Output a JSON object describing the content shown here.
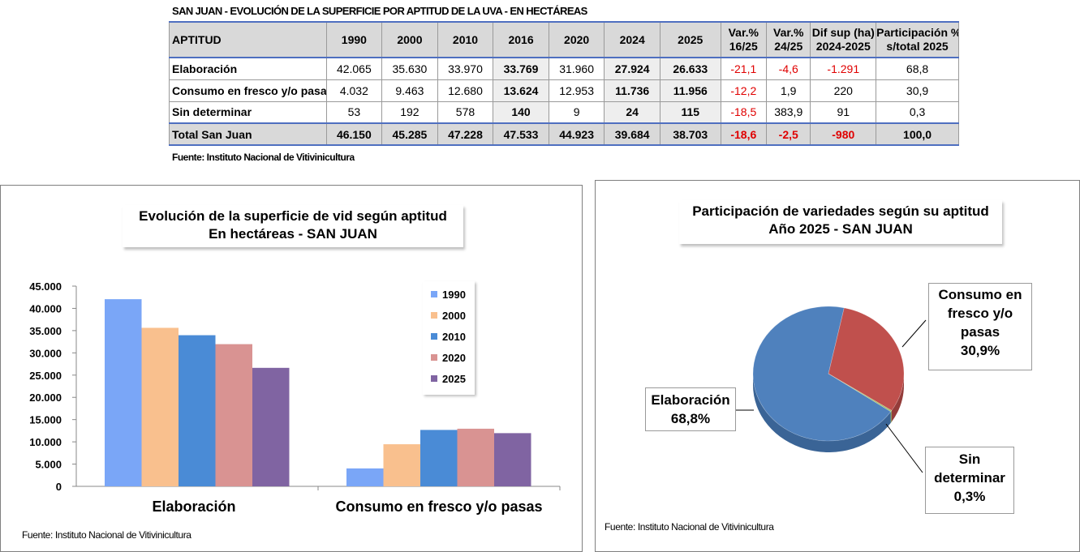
{
  "table": {
    "title": "SAN JUAN - EVOLUCIÓN DE LA SUPERFICIE POR APTITUD DE LA UVA - EN HECTÁREAS",
    "headers": {
      "aptitud": "APTITUD",
      "y1990": "1990",
      "y2000": "2000",
      "y2010": "2010",
      "y2016": "2016",
      "y2020": "2020",
      "y2024": "2024",
      "y2025": "2025",
      "var1625_a": "Var.%",
      "var1625_b": "16/25",
      "var2425_a": "Var.%",
      "var2425_b": "24/25",
      "dif_a": "Dif sup (ha)",
      "dif_b": "2024-2025",
      "part_a": "Participación %",
      "part_b": "s/total 2025"
    },
    "rows": [
      {
        "label": "Elaboración",
        "v1990": "42.065",
        "v2000": "35.630",
        "v2010": "33.970",
        "v2016": "33.769",
        "v2020": "31.960",
        "v2024": "27.924",
        "v2025": "26.633",
        "var1625": "-21,1",
        "var2425": "-4,6",
        "dif": "-1.291",
        "part": "68,8"
      },
      {
        "label": "Consumo en fresco y/o pasas",
        "v1990": "4.032",
        "v2000": "9.463",
        "v2010": "12.680",
        "v2016": "13.624",
        "v2020": "12.953",
        "v2024": "11.736",
        "v2025": "11.956",
        "var1625": "-12,2",
        "var2425": "1,9",
        "dif": "220",
        "part": "30,9"
      },
      {
        "label": "Sin determinar",
        "v1990": "53",
        "v2000": "192",
        "v2010": "578",
        "v2016": "140",
        "v2020": "9",
        "v2024": "24",
        "v2025": "115",
        "var1625": "-18,5",
        "var2425": "383,9",
        "dif": "91",
        "part": "0,3"
      }
    ],
    "total": {
      "label": "Total San Juan",
      "v1990": "46.150",
      "v2000": "45.285",
      "v2010": "47.228",
      "v2016": "47.533",
      "v2020": "44.923",
      "v2024": "39.684",
      "v2025": "38.703",
      "var1625": "-18,6",
      "var2425": "-2,5",
      "dif": "-980",
      "part": "100,0"
    },
    "source": "Fuente: Instituto Nacional de Vitivinicultura"
  },
  "colors": {
    "s1990": "#7aa6f7",
    "s2000": "#f9c08e",
    "s2010": "#4a8bd6",
    "s2020": "#d99392",
    "s2025": "#8064a2",
    "pie_elaboracion": "#4f81bd",
    "pie_consumo": "#c0504d",
    "pie_sin": "#9bbb59",
    "red_text": "#e00000"
  },
  "chart_data": [
    {
      "type": "bar",
      "title": "Evolución de la superficie de vid según aptitud",
      "subtitle": "En hectáreas - SAN JUAN",
      "categories": [
        "Elaboración",
        "Consumo en fresco y/o pasas"
      ],
      "series": [
        {
          "name": "1990",
          "values": [
            42065,
            4032
          ]
        },
        {
          "name": "2000",
          "values": [
            35630,
            9463
          ]
        },
        {
          "name": "2010",
          "values": [
            33970,
            12680
          ]
        },
        {
          "name": "2020",
          "values": [
            31960,
            12953
          ]
        },
        {
          "name": "2025",
          "values": [
            26633,
            11956
          ]
        }
      ],
      "ylim": [
        0,
        45000
      ],
      "yticks": [
        "0",
        "5.000",
        "10.000",
        "15.000",
        "20.000",
        "25.000",
        "30.000",
        "35.000",
        "40.000",
        "45.000"
      ],
      "grid": false,
      "legend": "right",
      "source": "Fuente: Instituto Nacional de Vitivinicultura"
    },
    {
      "type": "pie",
      "title": "Participación de variedades según su aptitud",
      "subtitle": "Año 2025 - SAN JUAN",
      "slices": [
        {
          "label": "Elaboración",
          "value": 68.8,
          "text": "68,8%"
        },
        {
          "label": "Consumo en fresco y/o pasas",
          "value": 30.9,
          "text": "30,9%"
        },
        {
          "label": "Sin determinar",
          "value": 0.3,
          "text": "0,3%"
        }
      ],
      "source": "Fuente: Instituto Nacional de Vitivinicultura"
    }
  ]
}
